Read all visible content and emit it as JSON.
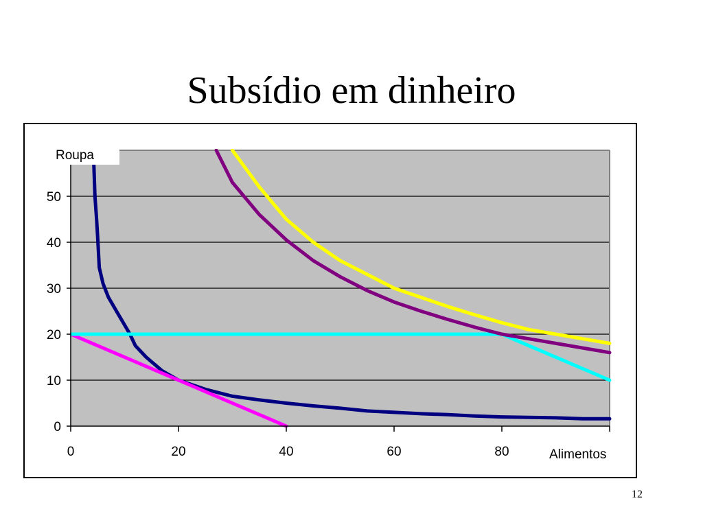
{
  "slide": {
    "title": "Subsídio em dinheiro",
    "page_number": "12"
  },
  "chart_data": {
    "type": "line",
    "xlabel": "Alimentos",
    "ylabel": "Roupa",
    "xlim": [
      0,
      100
    ],
    "ylim": [
      0,
      60
    ],
    "xticks": [
      0,
      20,
      40,
      60,
      80
    ],
    "yticks": [
      0,
      10,
      20,
      30,
      40,
      50
    ],
    "grid": "horizontal",
    "plot_background": "#c0c0c0",
    "series": [
      {
        "color": "#000080",
        "x": [
          4.2,
          4.5,
          4.8,
          5.0,
          5.3,
          6.0,
          7.0,
          8.5,
          10.0,
          11.0,
          12.0,
          14.0,
          17.0,
          20.0,
          25.0,
          30.0,
          35.0,
          40.0,
          45.0,
          50.0,
          55.0,
          60.0,
          65.0,
          70.0,
          75.0,
          80.0,
          85.0,
          90.0,
          95.0,
          100.0
        ],
        "y": [
          60.0,
          50.0,
          45.0,
          41.0,
          34.5,
          31.0,
          28.0,
          25.0,
          22.0,
          20.0,
          17.5,
          15.0,
          12.0,
          10.0,
          8.0,
          6.5,
          5.7,
          5.0,
          4.4,
          3.9,
          3.3,
          3.0,
          2.7,
          2.5,
          2.2,
          2.0,
          1.9,
          1.8,
          1.6,
          1.6
        ]
      },
      {
        "color": "#ff00ff",
        "x": [
          0,
          40
        ],
        "y": [
          20,
          0
        ]
      },
      {
        "color": "#00ffff",
        "x": [
          0,
          80,
          100
        ],
        "y": [
          20,
          20,
          10
        ]
      },
      {
        "color": "#800080",
        "x": [
          27.0,
          30.0,
          35.0,
          40.0,
          45.0,
          50.0,
          55.0,
          60.0,
          65.0,
          70.0,
          75.0,
          80.0,
          85.0,
          90.0,
          95.0,
          100.0
        ],
        "y": [
          60.0,
          53.0,
          46.0,
          40.5,
          36.0,
          32.5,
          29.5,
          27.0,
          25.0,
          23.2,
          21.5,
          20.0,
          19.0,
          18.0,
          17.0,
          16.0
        ]
      },
      {
        "color": "#ffff00",
        "x": [
          30.0,
          35.0,
          40.0,
          45.0,
          50.0,
          55.0,
          60.0,
          65.0,
          70.0,
          75.0,
          80.0,
          85.0,
          90.0,
          95.0,
          100.0
        ],
        "y": [
          60.0,
          52.0,
          45.0,
          40.0,
          36.0,
          33.0,
          30.0,
          28.0,
          26.0,
          24.2,
          22.5,
          21.0,
          20.0,
          19.0,
          18.0
        ]
      }
    ]
  }
}
